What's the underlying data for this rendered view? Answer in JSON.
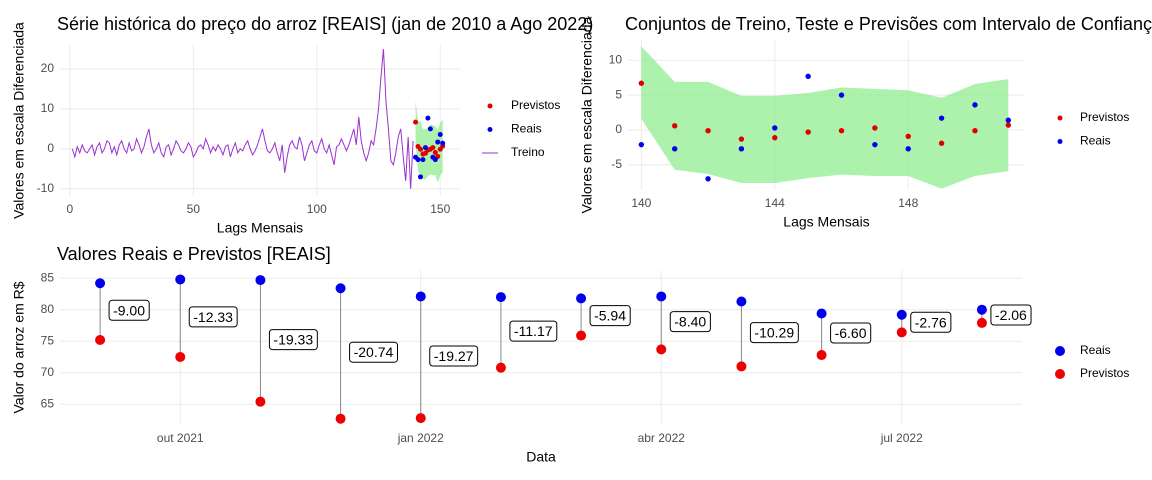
{
  "chart_data": [
    {
      "type": "line",
      "title": "Série histórica do preço do arroz [REAIS] (jan de 2010 a Ago 2022)",
      "xlabel": "Lags Mensais",
      "ylabel": "Valores em escala Diferenciada",
      "xlim": [
        -4,
        158
      ],
      "ylim": [
        -11.8,
        26
      ],
      "xticks": [
        0,
        50,
        100,
        150
      ],
      "yticks": [
        -10,
        0,
        10,
        20
      ],
      "grid": true,
      "legend": "right",
      "band": {
        "color": "#90ee90",
        "x": [
          140,
          141,
          142,
          143,
          144,
          145,
          146,
          147,
          148,
          149,
          150,
          151
        ],
        "upper": [
          12,
          6.9,
          6.9,
          4.9,
          4.9,
          5.3,
          6.1,
          5.9,
          5.7,
          4.6,
          6.6,
          7.3
        ],
        "lower": [
          1.6,
          -5.7,
          -6.3,
          -7.6,
          -7.6,
          -6.9,
          -6.4,
          -6.6,
          -6.6,
          -8.4,
          -6.6,
          -5.9
        ]
      },
      "series": [
        {
          "name": "Previstos",
          "color": "#e00000",
          "kind": "points",
          "x": [
            140,
            141,
            142,
            143,
            144,
            145,
            146,
            147,
            148,
            149,
            150,
            151
          ],
          "values": [
            6.7,
            0.6,
            -0.1,
            -1.3,
            -1.1,
            -0.3,
            -0.1,
            0.3,
            -0.9,
            -1.9,
            -0.1,
            0.7
          ]
        },
        {
          "name": "Reais",
          "color": "#0000ee",
          "kind": "points",
          "x": [
            140,
            141,
            142,
            143,
            144,
            145,
            146,
            147,
            148,
            149,
            150,
            151
          ],
          "values": [
            -2.1,
            -2.7,
            -7.0,
            -2.7,
            0.3,
            7.7,
            5.0,
            -2.1,
            -2.7,
            1.7,
            3.6,
            1.4
          ]
        },
        {
          "name": "Treino",
          "color": "#9b30d0",
          "kind": "line",
          "x": [
            1,
            2,
            3,
            4,
            5,
            6,
            7,
            8,
            9,
            10,
            11,
            12,
            13,
            14,
            15,
            16,
            17,
            18,
            19,
            20,
            21,
            22,
            23,
            24,
            25,
            26,
            27,
            28,
            29,
            30,
            31,
            32,
            33,
            34,
            35,
            36,
            37,
            38,
            39,
            40,
            41,
            42,
            43,
            44,
            45,
            46,
            47,
            48,
            49,
            50,
            51,
            52,
            53,
            54,
            55,
            56,
            57,
            58,
            59,
            60,
            61,
            62,
            63,
            64,
            65,
            66,
            67,
            68,
            69,
            70,
            71,
            72,
            73,
            74,
            75,
            76,
            77,
            78,
            79,
            80,
            81,
            82,
            83,
            84,
            85,
            86,
            87,
            88,
            89,
            90,
            91,
            92,
            93,
            94,
            95,
            96,
            97,
            98,
            99,
            100,
            101,
            102,
            103,
            104,
            105,
            106,
            107,
            108,
            109,
            110,
            111,
            112,
            113,
            114,
            115,
            116,
            117,
            118,
            119,
            120,
            121,
            122,
            123,
            124,
            125,
            126,
            127,
            128,
            129,
            130,
            131,
            132,
            133,
            134,
            135,
            136,
            137,
            138,
            139
          ],
          "values": [
            0,
            -2,
            0.5,
            -1,
            1,
            -0.5,
            -1,
            0,
            1,
            -1.5,
            0.5,
            1.5,
            -1,
            0,
            2,
            1.5,
            -1,
            0.5,
            -1.5,
            1,
            2,
            0,
            -1,
            1.5,
            -0.5,
            0,
            2.5,
            1,
            -1,
            0.5,
            3,
            5,
            1,
            -1,
            0,
            1.5,
            -1,
            -2,
            0.5,
            1,
            -1.5,
            0,
            2,
            1,
            -0.5,
            -1,
            0,
            1.5,
            0.5,
            -2,
            -1,
            0.5,
            1,
            0,
            2.5,
            1,
            -1,
            0.5,
            -0.5,
            1,
            0,
            -1.5,
            0.5,
            1,
            -2,
            0,
            1.5,
            -1,
            0,
            -0.5,
            1,
            2,
            0,
            -1.5,
            -0.5,
            1,
            3,
            5,
            2,
            -0.5,
            -1,
            0,
            1.5,
            -1,
            -3,
            1,
            -6,
            -2,
            1,
            2,
            0.5,
            0,
            3,
            1,
            -3,
            -1,
            1,
            2,
            -0.5,
            -1,
            1,
            2.5,
            0,
            -1,
            1,
            -1.5,
            -4,
            0.5,
            1,
            2.5,
            1,
            -0.5,
            1,
            3,
            5,
            1,
            8,
            2,
            -1,
            -3,
            -1,
            2,
            1,
            5,
            10,
            18,
            25,
            12,
            5,
            -3,
            -4,
            -1,
            3,
            5,
            -2,
            -8,
            3,
            -10,
            2
          ]
        }
      ]
    },
    {
      "type": "scatter",
      "title": "Conjuntos de Treino, Teste e Previsões com Intervalo de Confiança",
      "xlabel": "Lags Mensais",
      "ylabel": "Valores em escala Diferenciada",
      "xlim": [
        139.6,
        151.5
      ],
      "ylim": [
        -8.6,
        12.9
      ],
      "xticks": [
        140,
        144,
        148
      ],
      "yticks": [
        -5,
        0,
        5,
        10
      ],
      "grid": true,
      "legend": "right",
      "x": [
        140,
        141,
        142,
        143,
        144,
        145,
        146,
        147,
        148,
        149,
        150,
        151
      ],
      "band": {
        "color": "#90ee90",
        "upper": [
          12,
          6.9,
          6.9,
          4.9,
          4.9,
          5.3,
          6.1,
          5.9,
          5.7,
          4.6,
          6.6,
          7.3
        ],
        "lower": [
          1.6,
          -5.7,
          -6.3,
          -7.6,
          -7.6,
          -6.9,
          -6.4,
          -6.6,
          -6.6,
          -8.4,
          -6.6,
          -5.9
        ]
      },
      "series": [
        {
          "name": "Previstos",
          "color": "#e00000",
          "values": [
            6.7,
            0.6,
            -0.1,
            -1.3,
            -1.1,
            -0.3,
            -0.1,
            0.3,
            -0.9,
            -1.9,
            -0.1,
            0.7
          ]
        },
        {
          "name": "Reais",
          "color": "#0000ee",
          "values": [
            -2.1,
            -2.7,
            -7.0,
            -2.7,
            0.3,
            7.7,
            5.0,
            -2.1,
            -2.7,
            1.7,
            3.6,
            1.4
          ]
        }
      ]
    },
    {
      "type": "dumbbell",
      "title": "Valores Reais e Previstos [REAIS]",
      "xlabel": "Data",
      "ylabel": "Valor do arroz em R$",
      "xlim": [
        "2021-09",
        "2022-08"
      ],
      "ylim": [
        61.7,
        86.3
      ],
      "xticks": [
        {
          "value": "2021-10",
          "label": "out 2021"
        },
        {
          "value": "2022-01",
          "label": "jan 2022"
        },
        {
          "value": "2022-04",
          "label": "abr 2022"
        },
        {
          "value": "2022-07",
          "label": "jul 2022"
        }
      ],
      "yticks": [
        65,
        70,
        75,
        80,
        85
      ],
      "grid": true,
      "legend": "right",
      "x": [
        "2021-09",
        "2021-10",
        "2021-11",
        "2021-12",
        "2022-01",
        "2022-02",
        "2022-03",
        "2022-04",
        "2022-05",
        "2022-06",
        "2022-07",
        "2022-08"
      ],
      "series": [
        {
          "name": "Reais",
          "color": "#0000ee",
          "values": [
            84.2,
            84.8,
            84.7,
            83.4,
            82.1,
            82.0,
            81.8,
            82.1,
            81.3,
            79.4,
            79.2,
            80.0
          ]
        },
        {
          "name": "Previstos",
          "color": "#ee0000",
          "values": [
            75.2,
            72.5,
            65.4,
            62.7,
            62.8,
            70.8,
            75.9,
            73.7,
            71.0,
            72.8,
            76.4,
            77.9
          ]
        }
      ],
      "differences": [
        -9.0,
        -12.33,
        -19.33,
        -20.74,
        -19.27,
        -11.17,
        -5.94,
        -8.4,
        -10.29,
        -6.6,
        -2.76,
        -2.06
      ],
      "difference_labels": [
        "-9.00",
        "-12.33",
        "-19.33",
        "-20.74",
        "-19.27",
        "-11.17",
        "-5.94",
        "-8.40",
        "-10.29",
        "-6.60",
        "-2.76",
        "-2.06"
      ]
    }
  ]
}
